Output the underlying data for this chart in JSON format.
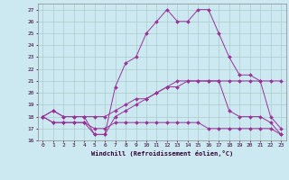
{
  "xlabel": "Windchill (Refroidissement éolien,°C)",
  "background_color": "#cce8f0",
  "grid_color": "#aacccc",
  "line_color": "#993399",
  "xlim": [
    -0.5,
    23.5
  ],
  "ylim": [
    16,
    27.5
  ],
  "yticks": [
    16,
    17,
    18,
    19,
    20,
    21,
    22,
    23,
    24,
    25,
    26,
    27
  ],
  "xticks": [
    0,
    1,
    2,
    3,
    4,
    5,
    6,
    7,
    8,
    9,
    10,
    11,
    12,
    13,
    14,
    15,
    16,
    17,
    18,
    19,
    20,
    21,
    22,
    23
  ],
  "series": [
    [
      18.0,
      18.5,
      18.0,
      18.0,
      18.0,
      18.0,
      18.0,
      18.5,
      19.0,
      19.5,
      19.5,
      20.0,
      20.5,
      21.0,
      21.0,
      21.0,
      21.0,
      21.0,
      21.0,
      21.0,
      21.0,
      21.0,
      21.0,
      21.0
    ],
    [
      18.0,
      17.5,
      17.5,
      17.5,
      17.5,
      17.0,
      17.0,
      17.5,
      17.5,
      17.5,
      17.5,
      17.5,
      17.5,
      17.5,
      17.5,
      17.5,
      17.0,
      17.0,
      17.0,
      17.0,
      17.0,
      17.0,
      17.0,
      16.5
    ],
    [
      18.0,
      17.5,
      17.5,
      17.5,
      17.5,
      16.5,
      16.5,
      18.0,
      18.5,
      19.0,
      19.5,
      20.0,
      20.5,
      20.5,
      21.0,
      21.0,
      21.0,
      21.0,
      18.5,
      18.0,
      18.0,
      18.0,
      17.5,
      16.5
    ],
    [
      18.0,
      18.5,
      18.0,
      18.0,
      18.0,
      16.5,
      16.5,
      20.5,
      22.5,
      23.0,
      25.0,
      26.0,
      27.0,
      26.0,
      26.0,
      27.0,
      27.0,
      25.0,
      23.0,
      21.5,
      21.5,
      21.0,
      18.0,
      17.0
    ]
  ]
}
